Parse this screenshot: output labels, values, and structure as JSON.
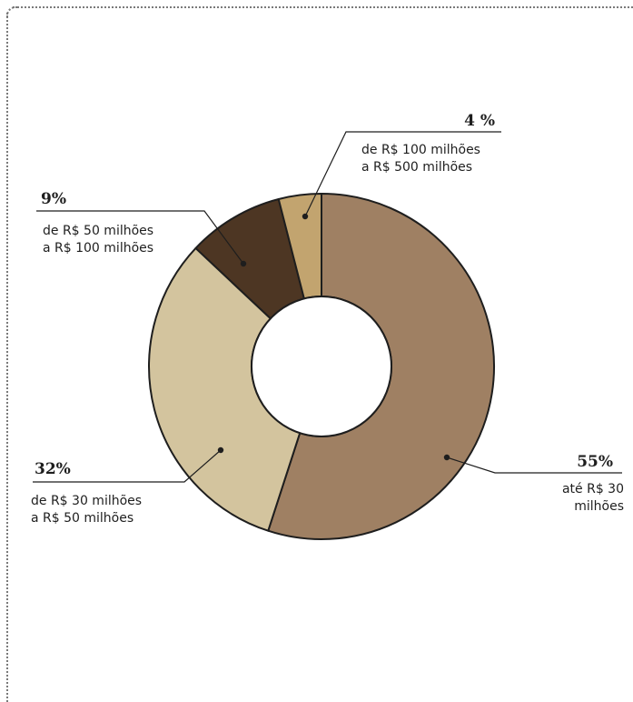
{
  "chart_data": {
    "type": "pie",
    "title": "",
    "slices": [
      {
        "percent_label": "55%",
        "value": 55,
        "label_lines": [
          "até R$ 30",
          "milhões"
        ],
        "color": "#9f8063"
      },
      {
        "percent_label": "32%",
        "value": 32,
        "label_lines": [
          "de R$ 30 milhões",
          "a R$ 50 milhões"
        ],
        "color": "#d3c49e"
      },
      {
        "percent_label": "9%",
        "value": 9,
        "label_lines": [
          "de R$ 50 milhões",
          "a R$ 100 milhões"
        ],
        "color": "#4d3623"
      },
      {
        "percent_label": "4 %",
        "value": 4,
        "label_lines": [
          "de R$ 100 milhões",
          "a R$ 500 milhões"
        ],
        "color": "#c2a46f"
      }
    ],
    "legend": "callouts"
  }
}
